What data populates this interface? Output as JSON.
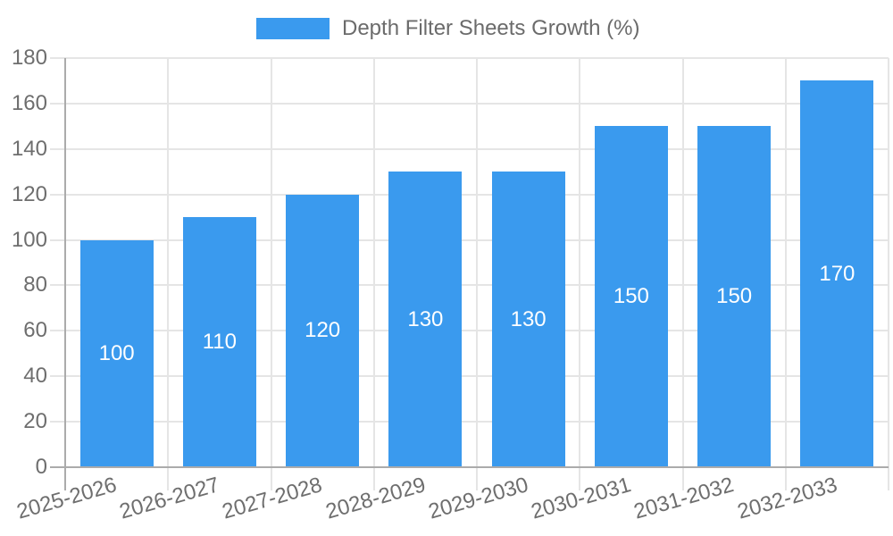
{
  "chart_data": {
    "type": "bar",
    "title": "",
    "legend": "Depth Filter Sheets Growth (%)",
    "legend_position": "top-center",
    "categories": [
      "2025-2026",
      "2026-2027",
      "2027-2028",
      "2028-2029",
      "2029-2030",
      "2030-2031",
      "2031-2032",
      "2032-2033"
    ],
    "series": [
      {
        "name": "Depth Filter Sheets Growth (%)",
        "values": [
          100,
          110,
          120,
          130,
          130,
          150,
          150,
          170
        ]
      }
    ],
    "bar_value_labels_visible": true,
    "xlabel": "",
    "ylabel": "",
    "ylim": [
      0,
      180
    ],
    "yticks": [
      0,
      20,
      40,
      60,
      80,
      100,
      120,
      140,
      160,
      180
    ],
    "grid": true,
    "x_label_rotation_deg": -16
  },
  "colors": {
    "bar": "#3A9AEE",
    "grid": "#E5E5E5",
    "axis": "#ABABAB",
    "tick_text": "#6E6E6E",
    "bar_label_text": "#FFFFFF",
    "legend_text": "#6B6B6B",
    "background": "#FFFFFF"
  }
}
